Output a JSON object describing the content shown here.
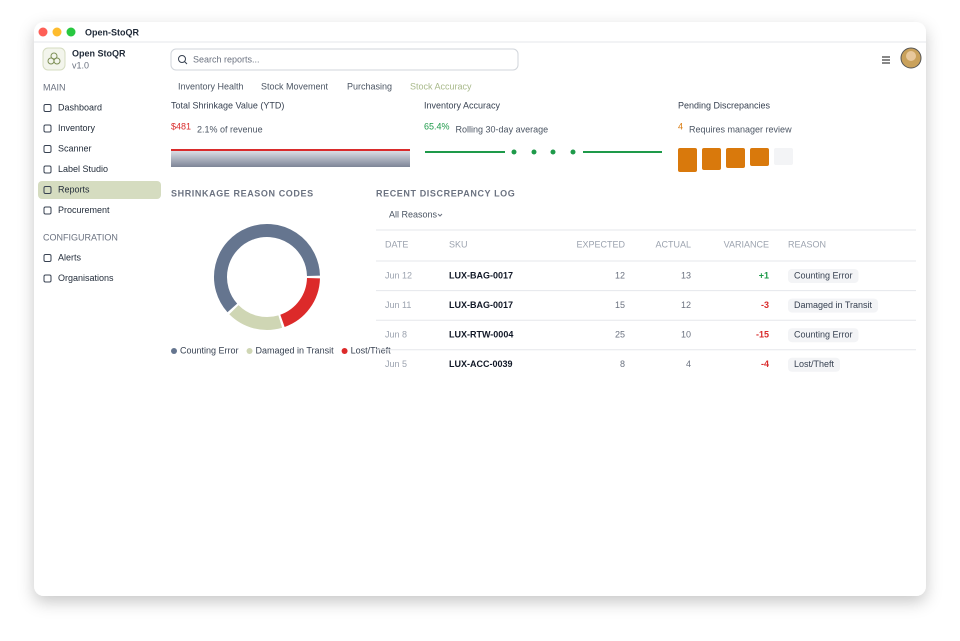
{
  "window": {
    "title": "Open-StoQR"
  },
  "sidebar": {
    "app_name": "Open StoQR",
    "version": "v1.0",
    "sections": [
      {
        "title": "MAIN",
        "items": [
          {
            "label": "Dashboard"
          },
          {
            "label": "Inventory"
          },
          {
            "label": "Scanner"
          },
          {
            "label": "Label Studio"
          },
          {
            "label": "Reports",
            "active": true
          },
          {
            "label": "Procurement"
          }
        ]
      },
      {
        "title": "CONFIGURATION",
        "items": [
          {
            "label": "Alerts"
          },
          {
            "label": "Organisations"
          }
        ]
      }
    ]
  },
  "search": {
    "placeholder": "Search reports..."
  },
  "tabs": {
    "items": [
      "Inventory Health",
      "Stock Movement",
      "Purchasing",
      "Stock Accuracy"
    ],
    "active": 3
  },
  "kpis": [
    {
      "label": "Total Shrinkage Value (YTD)",
      "value": "$481",
      "note": "2.1% of revenue",
      "color": "#d92b2b"
    },
    {
      "label": "Inventory Accuracy",
      "value": "65.4%",
      "note": "Rolling 30-day average",
      "color": "#1e9a4a"
    },
    {
      "label": "Pending Discrepancies",
      "value": "4",
      "note": "Requires manager review",
      "color": "#d9790c"
    }
  ],
  "chart_data": {
    "type": "pie",
    "title": "SHRINKAGE REASON CODES",
    "categories": [
      "Counting Error",
      "Damaged in Transit",
      "Lost/Theft"
    ],
    "values": [
      62,
      18,
      20
    ],
    "colors": [
      "#65758f",
      "#cfd6b4",
      "#dc2a2a"
    ]
  },
  "log": {
    "title": "RECENT DISCREPANCY LOG",
    "filter": "All Reasons",
    "columns": [
      "DATE",
      "SKU",
      "EXPECTED",
      "ACTUAL",
      "VARIANCE",
      "REASON"
    ],
    "rows": [
      [
        "Jun 12",
        "LUX-BAG-0017",
        12,
        13,
        "+1",
        "Counting Error"
      ],
      [
        "Jun 11",
        "LUX-BAG-0017",
        15,
        12,
        "-3",
        "Damaged in Transit"
      ],
      [
        "Jun 8",
        "LUX-RTW-0004",
        25,
        10,
        "-15",
        "Counting Error"
      ],
      [
        "Jun 5",
        "LUX-ACC-0039",
        8,
        4,
        "-4",
        "Lost/Theft"
      ]
    ]
  }
}
